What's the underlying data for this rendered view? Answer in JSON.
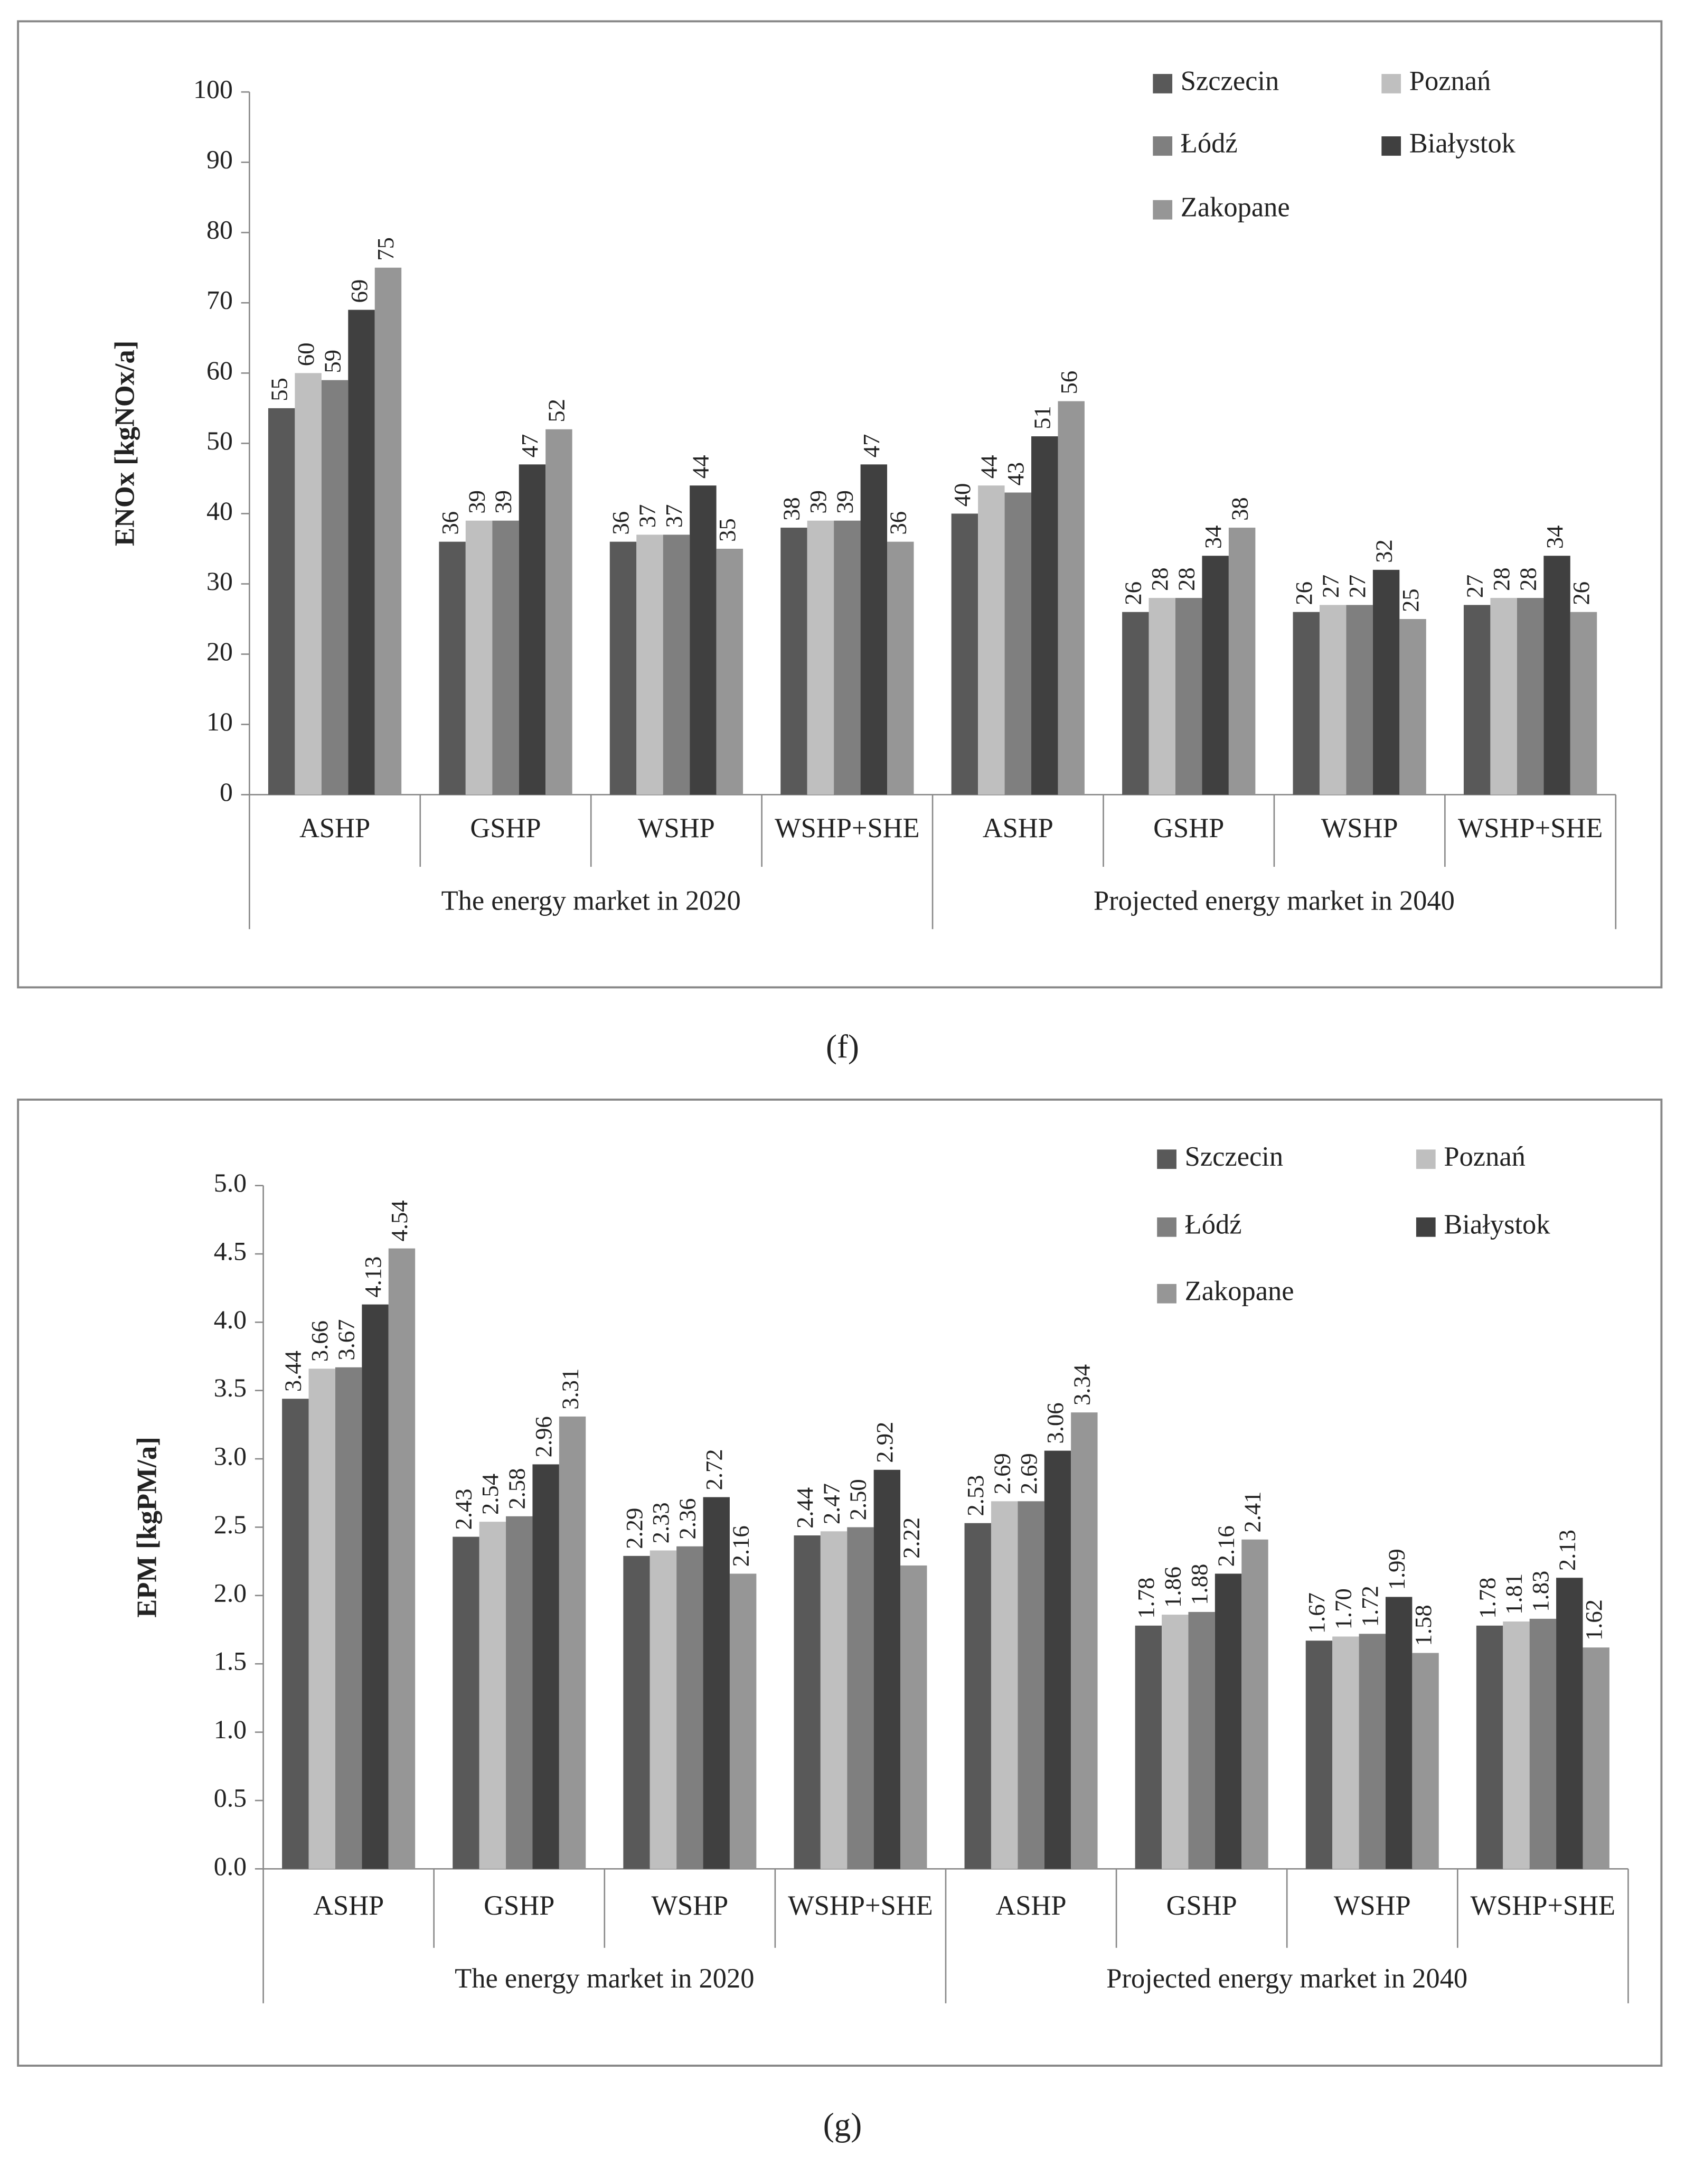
{
  "chart_data": [
    {
      "type": "bar",
      "caption": "(f)",
      "y_label": "ENOx [kgNOx/a]",
      "categories": [
        "ASHP",
        "GSHP",
        "WSHP",
        "WSHP+SHE",
        "ASHP",
        "GSHP",
        "WSHP",
        "WSHP+SHE"
      ],
      "groups": [
        "The energy market in 2020",
        "Projected energy market in 2040"
      ],
      "ylim": [
        0,
        100
      ],
      "yticks": [
        0,
        10,
        20,
        30,
        40,
        50,
        60,
        70,
        80,
        90,
        100
      ],
      "series": [
        {
          "name": "Szczecin",
          "color": "#595959",
          "values": [
            55,
            36,
            36,
            38,
            40,
            26,
            26,
            27
          ]
        },
        {
          "name": "Poznań",
          "color": "#bfbfbf",
          "values": [
            60,
            39,
            37,
            39,
            44,
            28,
            27,
            28
          ]
        },
        {
          "name": "Łódź",
          "color": "#7f7f7f",
          "values": [
            59,
            39,
            37,
            39,
            43,
            28,
            27,
            28
          ]
        },
        {
          "name": "Białystok",
          "color": "#404040",
          "values": [
            69,
            47,
            44,
            47,
            51,
            34,
            32,
            34
          ]
        },
        {
          "name": "Zakopane",
          "color": "#969696",
          "values": [
            75,
            52,
            35,
            36,
            56,
            38,
            25,
            26
          ]
        }
      ]
    },
    {
      "type": "bar",
      "caption": "(g)",
      "y_label": "EPM [kgPM/a]",
      "categories": [
        "ASHP",
        "GSHP",
        "WSHP",
        "WSHP+SHE",
        "ASHP",
        "GSHP",
        "WSHP",
        "WSHP+SHE"
      ],
      "groups": [
        "The energy market in 2020",
        "Projected energy market in 2040"
      ],
      "ylim": [
        0,
        5
      ],
      "yticks": [
        {
          "value": 0,
          "label": "0.0"
        },
        0.5,
        {
          "value": 1,
          "label": "1.0"
        },
        1.5,
        {
          "value": 2,
          "label": "2.0"
        },
        2.5,
        {
          "value": 3,
          "label": "3.0"
        },
        3.5,
        {
          "value": 4,
          "label": "4.0"
        },
        4.5,
        {
          "value": 5,
          "label": "5.0"
        }
      ],
      "series": [
        {
          "name": "Szczecin",
          "color": "#595959",
          "values": [
            3.44,
            2.43,
            2.29,
            2.44,
            2.53,
            1.78,
            1.67,
            1.78
          ],
          "value_labels": [
            "3.44",
            "2.43",
            "2.29",
            "2.44",
            "2.53",
            "1.78",
            "1.67",
            "1.78"
          ]
        },
        {
          "name": "Poznań",
          "color": "#bfbfbf",
          "values": [
            3.66,
            2.54,
            2.33,
            2.47,
            2.69,
            1.86,
            1.7,
            1.81
          ],
          "value_labels": [
            "3.66",
            "2.54",
            "2.33",
            "2.47",
            "2.69",
            "1.86",
            "1.70",
            "1.81"
          ]
        },
        {
          "name": "Łódź",
          "color": "#7f7f7f",
          "values": [
            3.67,
            2.58,
            2.36,
            2.5,
            2.69,
            1.88,
            1.72,
            1.83
          ],
          "value_labels": [
            "3.67",
            "2.58",
            "2.36",
            "2.50",
            "2.69",
            "1.88",
            "1.72",
            "1.83"
          ]
        },
        {
          "name": "Białystok",
          "color": "#404040",
          "values": [
            4.13,
            2.96,
            2.72,
            2.92,
            3.06,
            2.16,
            1.99,
            2.13
          ],
          "value_labels": [
            "4.13",
            "2.96",
            "2.72",
            "2.92",
            "3.06",
            "2.16",
            "1.99",
            "2.13"
          ]
        },
        {
          "name": "Zakopane",
          "color": "#969696",
          "values": [
            4.54,
            3.31,
            2.16,
            2.22,
            3.34,
            2.41,
            1.58,
            1.62
          ],
          "value_labels": [
            "4.54",
            "3.31",
            "2.16",
            "2.22",
            "3.34",
            "2.41",
            "1.58",
            "1.62"
          ]
        }
      ]
    }
  ]
}
